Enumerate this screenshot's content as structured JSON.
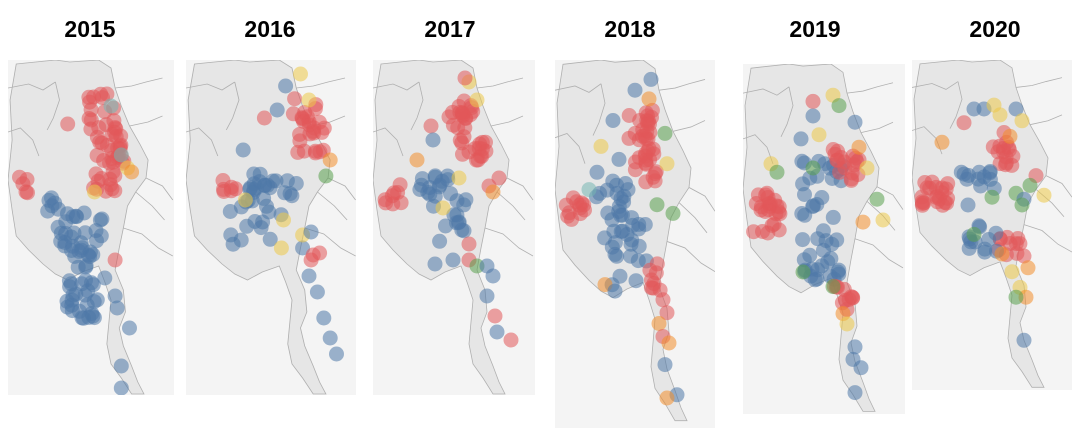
{
  "panels": [
    {
      "year": "2015"
    },
    {
      "year": "2016"
    },
    {
      "year": "2017"
    },
    {
      "year": "2018"
    },
    {
      "year": "2019"
    },
    {
      "year": "2020"
    }
  ],
  "colors": {
    "background": "#ffffff",
    "land": "#e6e6e6",
    "sea": "#f4f4f4",
    "borders": "#b0b0b0",
    "blue": "#4e79a7",
    "red": "#e15759",
    "yellow": "#edc948",
    "orange": "#f28e2b",
    "green": "#59a14f",
    "teal": "#76b7b2"
  }
}
